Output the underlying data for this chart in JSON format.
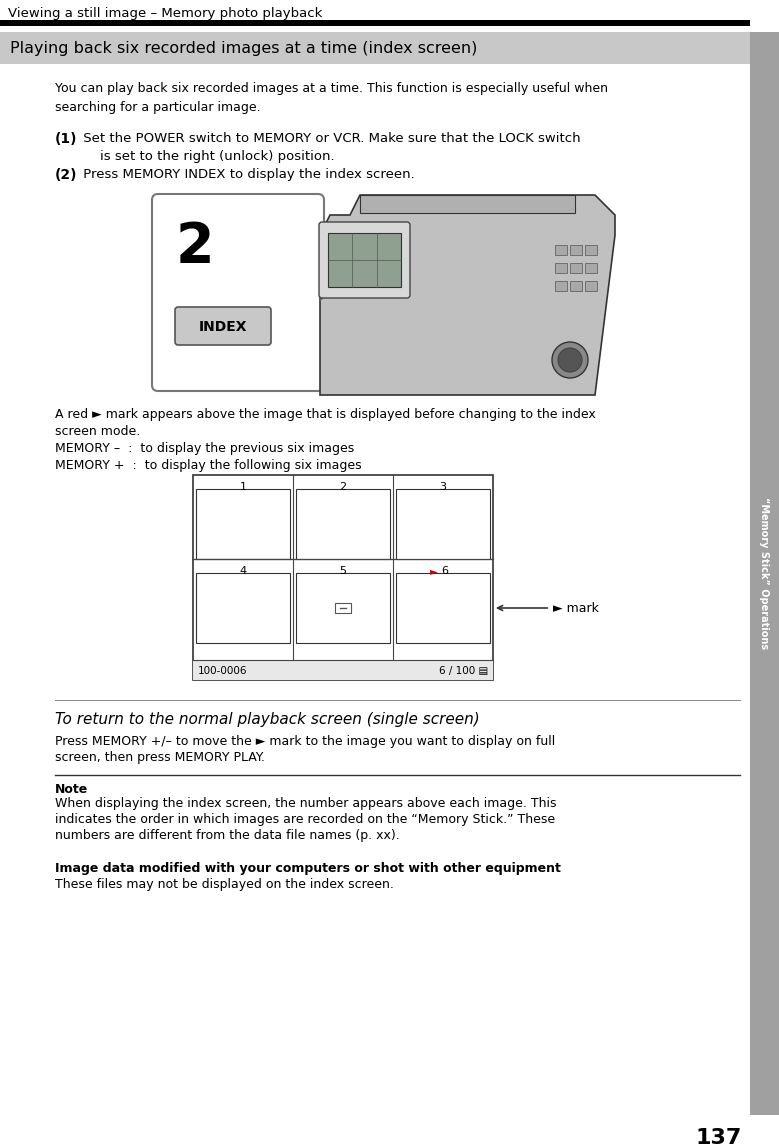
{
  "page_number": "137",
  "header_text": "Viewing a still image – Memory photo playback",
  "section_title": "Playing back six recorded images at a time (index screen)",
  "bg_color": "#ffffff",
  "sidebar_text": "“Memory Stick” Operations",
  "body_text_1": "You can play back six recorded images at a time. This function is especially useful when\nsearching for a particular image.",
  "step1_bold": "(1)",
  "step1_line1": " Set the POWER switch to MEMORY or VCR. Make sure that the LOCK switch",
  "step1_line2": "is set to the right (unlock) position.",
  "step2_bold": "(2)",
  "step2_text": " Press MEMORY INDEX to display the index screen.",
  "mark_text_line1": "A red ► mark appears above the image that is displayed before changing to the index",
  "mark_text_line2": "screen mode.",
  "memory_minus": "MEMORY –  :  to display the previous six images",
  "memory_plus": "MEMORY +  :  to display the following six images",
  "return_title": "To return to the normal playback screen (single screen)",
  "return_text_line1": "Press MEMORY +/– to move the ► mark to the image you want to display on full",
  "return_text_line2": "screen, then press MEMORY PLAY.",
  "note_title": "Note",
  "note_text_line1": "When displaying the index screen, the number appears above each image. This",
  "note_text_line2": "indicates the order in which images are recorded on the “Memory Stick.” These",
  "note_text_line3": "numbers are different from the data file names (p. xx).",
  "bold_section_title": "Image data modified with your computers or shot with other equipment",
  "bold_section_text": "These files may not be displayed on the index screen.",
  "index_label_number": "2",
  "index_button_label": "INDEX",
  "grid_labels_row1": [
    "1",
    "2",
    "3"
  ],
  "grid_labels_row2": [
    "4",
    "5",
    "►6"
  ],
  "grid_bottom_left": "100-0006",
  "grid_bottom_right": "6 / 100",
  "mark_label": "► mark",
  "section_bar_color": "#c8c8c8",
  "sidebar_color": "#a0a0a0",
  "header_line_color": "#000000"
}
